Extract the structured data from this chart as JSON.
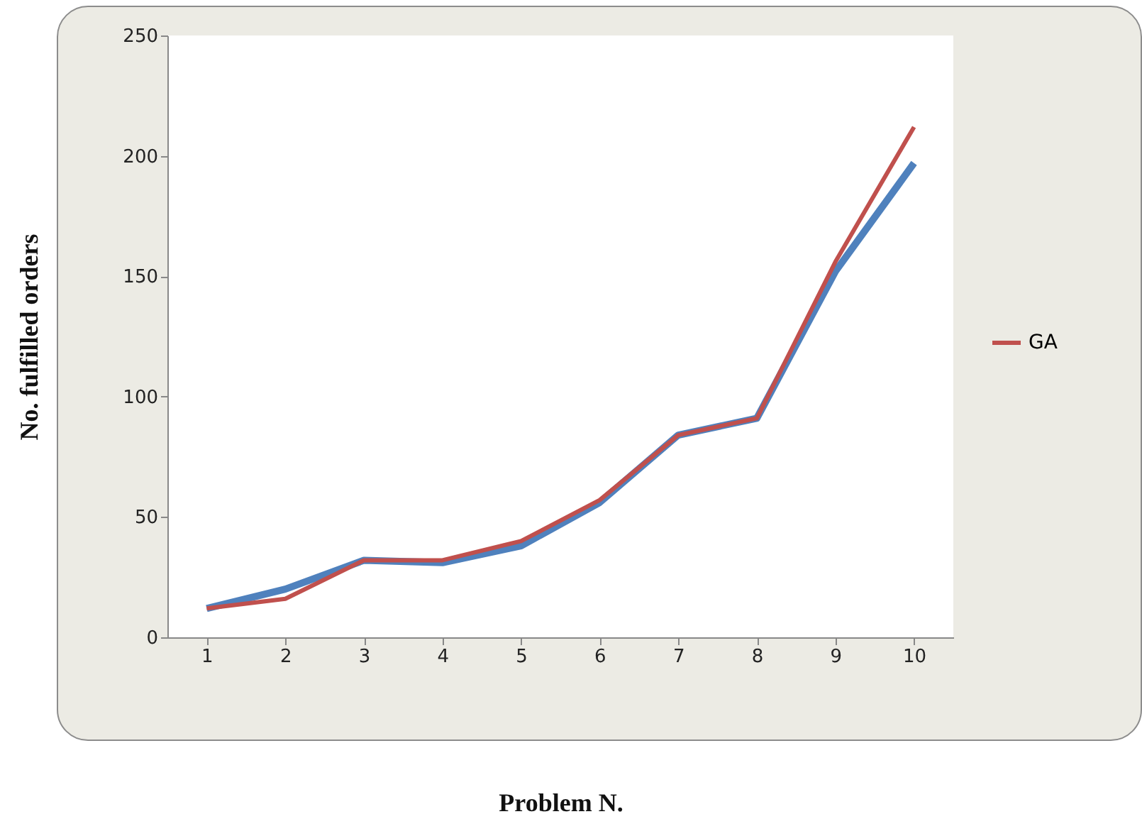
{
  "chart_data": {
    "type": "line",
    "xlabel": "Problem N.",
    "ylabel": "No. fulfilled orders",
    "categories": [
      "1",
      "2",
      "3",
      "4",
      "5",
      "6",
      "7",
      "8",
      "9",
      "10"
    ],
    "series": [
      {
        "color": "#4f81bd",
        "values": [
          12,
          20,
          32,
          31,
          38,
          56,
          84,
          91,
          152,
          197
        ]
      },
      {
        "name": "GA",
        "color": "#c0504d",
        "values": [
          12,
          16,
          32,
          32,
          40,
          57,
          84,
          91,
          156,
          212
        ]
      }
    ],
    "ylim": [
      0,
      250
    ],
    "yticks": [
      0,
      50,
      100,
      150,
      200,
      250
    ],
    "grid": false,
    "legend": "right",
    "marker": "none",
    "line_style": "solid"
  }
}
